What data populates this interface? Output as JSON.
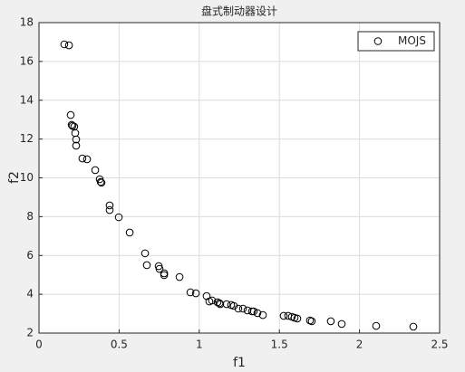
{
  "chart_data": {
    "type": "scatter",
    "title": "盘式制动器设计",
    "xlabel": "f1",
    "ylabel": "f2",
    "x": [
      0.158,
      0.187,
      0.198,
      0.204,
      0.209,
      0.22,
      0.226,
      0.232,
      0.232,
      0.271,
      0.3,
      0.351,
      0.379,
      0.385,
      0.39,
      0.441,
      0.441,
      0.498,
      0.566,
      0.662,
      0.673,
      0.747,
      0.752,
      0.781,
      0.781,
      0.877,
      0.945,
      0.979,
      1.046,
      1.063,
      1.08,
      1.114,
      1.126,
      1.131,
      1.171,
      1.199,
      1.216,
      1.244,
      1.273,
      1.301,
      1.329,
      1.34,
      1.363,
      1.397,
      1.527,
      1.555,
      1.578,
      1.595,
      1.612,
      1.691,
      1.702,
      1.821,
      1.889,
      2.104,
      2.336
    ],
    "series": [
      {
        "name": "MOJS",
        "color": "#000000",
        "values": [
          16.88,
          16.83,
          13.24,
          12.73,
          12.68,
          12.64,
          12.31,
          11.98,
          11.66,
          11.0,
          10.96,
          10.4,
          9.93,
          9.79,
          9.75,
          8.58,
          8.34,
          7.97,
          7.18,
          6.11,
          5.5,
          5.45,
          5.31,
          5.08,
          4.99,
          4.89,
          4.1,
          4.05,
          3.91,
          3.63,
          3.68,
          3.59,
          3.54,
          3.49,
          3.49,
          3.45,
          3.4,
          3.26,
          3.26,
          3.17,
          3.12,
          3.12,
          3.03,
          2.93,
          2.89,
          2.89,
          2.84,
          2.79,
          2.75,
          2.65,
          2.61,
          2.61,
          2.47,
          2.37,
          2.33
        ]
      }
    ],
    "xlim": [
      0,
      2.5
    ],
    "ylim": [
      2,
      18
    ],
    "xticks": [
      0,
      0.5,
      1,
      1.5,
      2,
      2.5
    ],
    "yticks": [
      2,
      4,
      6,
      8,
      10,
      12,
      14,
      16,
      18
    ],
    "grid": true,
    "legend": "top-right"
  }
}
